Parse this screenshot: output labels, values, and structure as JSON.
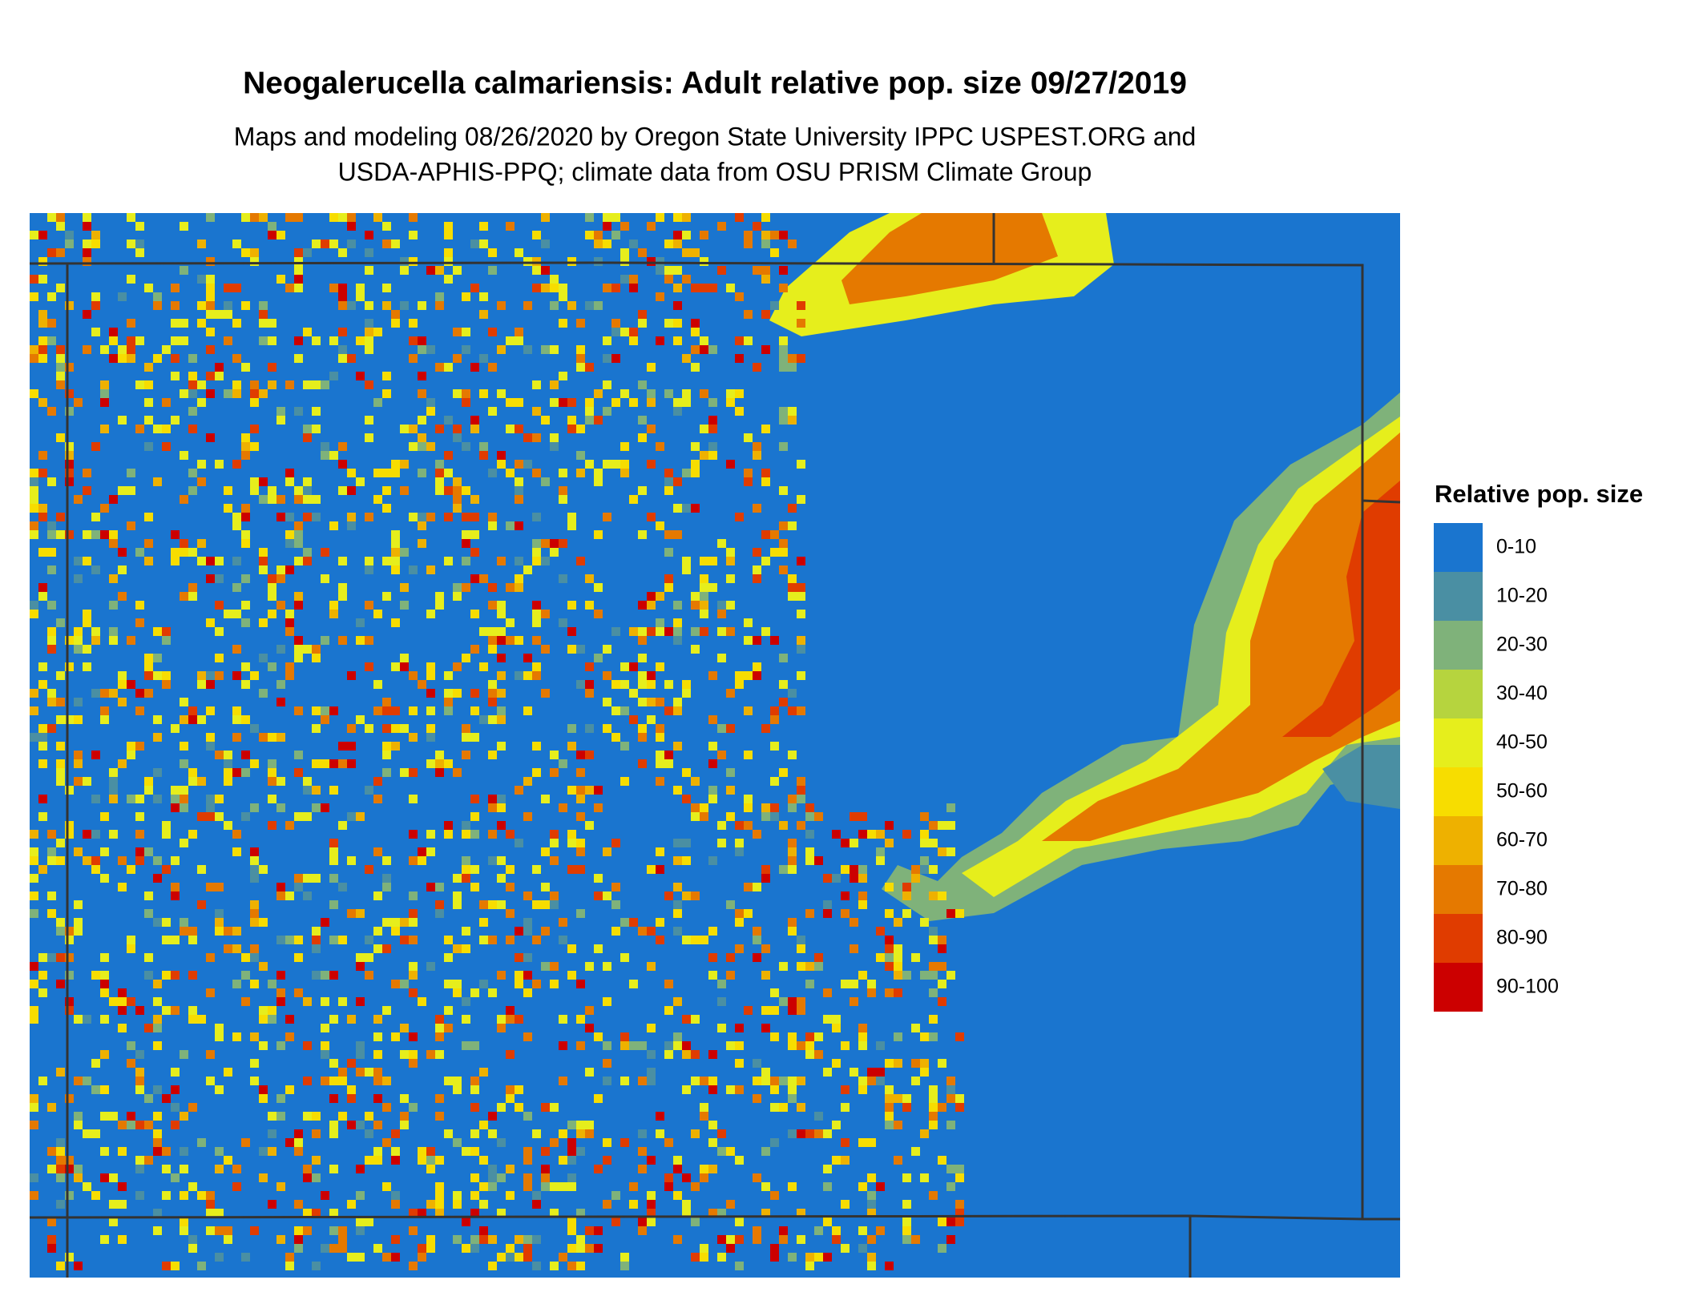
{
  "header": {
    "title": "Neogalerucella calmariensis: Adult relative pop. size 09/27/2019",
    "subtitle": [
      "Maps and modeling 08/26/2020 by Oregon State University IPPC USPEST.ORG and",
      "USDA-APHIS-PPQ; climate data from OSU PRISM Climate Group"
    ]
  },
  "legend": {
    "title": "Relative pop. size",
    "items": [
      {
        "label": "0-10",
        "color": "#1a75cf"
      },
      {
        "label": "10-20",
        "color": "#4a8fa3"
      },
      {
        "label": "20-30",
        "color": "#7fb27a"
      },
      {
        "label": "30-40",
        "color": "#b6d43e"
      },
      {
        "label": "40-50",
        "color": "#e6ee1c"
      },
      {
        "label": "50-60",
        "color": "#f7dd00"
      },
      {
        "label": "60-70",
        "color": "#eeb100"
      },
      {
        "label": "70-80",
        "color": "#e57900"
      },
      {
        "label": "80-90",
        "color": "#e03c00"
      },
      {
        "label": "90-100",
        "color": "#cc0000"
      }
    ]
  }
}
